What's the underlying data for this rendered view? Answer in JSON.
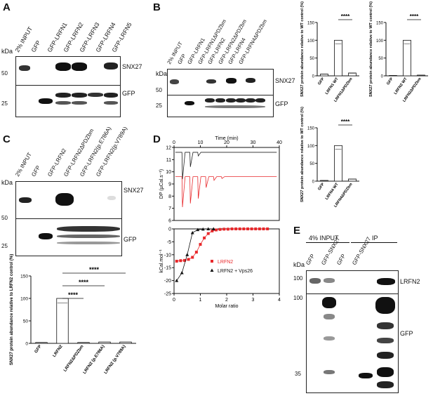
{
  "panels": {
    "a": "A",
    "b": "B",
    "c": "C",
    "d": "D",
    "e": "E"
  },
  "A": {
    "kda": "kDa",
    "lanes": [
      "2% INPUT",
      "GFP",
      "GFP-LRFN1",
      "GFP-LRFN2",
      "GFP-LRFN3",
      "GFP-LRFN4",
      "GFP-LRFN5"
    ],
    "mw": [
      "50",
      "25"
    ],
    "blot_labels": [
      "SNX27",
      "GFP"
    ]
  },
  "B": {
    "kda": "kDa",
    "lanes": [
      "2% INPUT",
      "GFP",
      "GFP-LRFN1",
      "GFP-LRFN1ΔPDZbm",
      "GFP-LRFN2",
      "GFP-LRFN2ΔPDZbm",
      "GFP-LRFN4",
      "GFP-LRFN4ΔPDZbm"
    ],
    "mw": [
      "50",
      "25"
    ],
    "blot_labels": [
      "SNX27",
      "GFP"
    ]
  },
  "C": {
    "kda": "kDa",
    "lanes": [
      "2% INPUT",
      "GFP",
      "GFP-LRFN2",
      "GFP-LRFN2ΔPDZbm",
      "GFP-LRFN2(p.E786A)",
      "GFP-LRFN2(p.V789A)"
    ],
    "mw": [
      "50",
      "25"
    ],
    "blot_labels": [
      "SNX27",
      "GFP"
    ]
  },
  "D": {
    "time_label": "Time (min)",
    "dp_label": "DP (µCal.s⁻¹)",
    "kcal_label": "kCal.mol⁻¹",
    "molar_ratio": "Molar ratio",
    "legend": [
      "LRFN2",
      "LRFN2 + Vps26"
    ]
  },
  "E": {
    "kda": "kDa",
    "group_labels": [
      "4% INPUT",
      "IP"
    ],
    "lanes": [
      "GFP",
      "GFP-SNX27",
      "GFP",
      "GFP-SNX27"
    ],
    "mw": [
      "100",
      "100",
      "35"
    ],
    "blot_labels": [
      "LRFN2",
      "GFP"
    ]
  },
  "chart_data": [
    {
      "type": "bar",
      "ylabel": "SNX27 protein abundance relative to WT control (%)",
      "categories": [
        "GFP",
        "LRFN1 WT",
        "LRFN1ΔPDZbm"
      ],
      "values": [
        5,
        100,
        8
      ],
      "ylim": [
        0,
        150
      ],
      "yticks": [
        "0",
        "50",
        "100",
        "150"
      ],
      "sig": "****"
    },
    {
      "type": "bar",
      "ylabel": "SNX27 protein abundance relative to WT control (%)",
      "categories": [
        "GFP",
        "LRFN2 WT",
        "LRFN2ΔPDZbm"
      ],
      "values": [
        1,
        100,
        2
      ],
      "ylim": [
        0,
        150
      ],
      "yticks": [
        "0",
        "50",
        "100",
        "150"
      ],
      "sig": "****"
    },
    {
      "type": "bar",
      "ylabel": "SNX27 protein abundance relative to WT control (%)",
      "categories": [
        "GFP",
        "LRFN4 WT",
        "LRFN4ΔPDZbm"
      ],
      "values": [
        2,
        100,
        6
      ],
      "ylim": [
        0,
        150
      ],
      "yticks": [
        "0",
        "50",
        "100",
        "150"
      ],
      "sig": "****"
    },
    {
      "type": "bar",
      "ylabel": "SNX27 protein abundance relative to LRFN2 control (%)",
      "categories": [
        "GFP",
        "LRFN2",
        "LRFN2ΔPDZbm",
        "LRFN2 (p.E786A)",
        "LRFN2 (p.V789A)"
      ],
      "values": [
        2,
        100,
        2,
        3,
        3
      ],
      "ylim": [
        0,
        150
      ],
      "yticks": [
        "0",
        "50",
        "100",
        "150"
      ],
      "sig": "****"
    },
    {
      "type": "line",
      "xlabel": "Time (min)",
      "ylabel": "DP (µCal.s⁻¹)",
      "xlim": [
        0,
        40
      ],
      "ylim": [
        6,
        12
      ],
      "xticks": [
        "0",
        "10",
        "20",
        "30",
        "40"
      ],
      "yticks": [
        "6",
        "7",
        "8",
        "9",
        "10",
        "11",
        "12"
      ]
    },
    {
      "type": "scatter",
      "xlabel": "Molar ratio",
      "ylabel": "kCal.mol⁻¹",
      "xlim": [
        0,
        4
      ],
      "ylim": [
        -25,
        0
      ],
      "xticks": [
        "0",
        "1",
        "2",
        "3",
        "4"
      ],
      "yticks": [
        "0",
        "-5",
        "-10",
        "-15",
        "-20",
        "-25"
      ],
      "series": [
        {
          "name": "LRFN2",
          "color": "#e8282b",
          "marker": "square",
          "x": [
            0.1,
            0.25,
            0.4,
            0.55,
            0.7,
            0.85,
            1.0,
            1.15,
            1.3,
            1.45,
            1.6,
            1.75,
            1.9,
            2.05,
            2.2,
            2.35,
            2.5,
            2.65,
            2.8,
            2.95,
            3.1,
            3.25,
            3.4,
            3.55
          ],
          "y": [
            -12.5,
            -12.3,
            -12.2,
            -11.8,
            -11.0,
            -9.0,
            -6.0,
            -3.5,
            -1.8,
            -0.8,
            -0.4,
            -0.2,
            -0.1,
            -0.1,
            0,
            0,
            0,
            0,
            0,
            0,
            0,
            0,
            0,
            0
          ]
        },
        {
          "name": "LRFN2 + Vps26",
          "color": "#111111",
          "marker": "triangle",
          "x": [
            0.1,
            0.3,
            0.5,
            0.7,
            0.9,
            1.1,
            1.3,
            1.5
          ],
          "y": [
            -20,
            -17,
            -10,
            -1.5,
            -0.3,
            -0.1,
            0,
            0
          ]
        }
      ]
    }
  ]
}
